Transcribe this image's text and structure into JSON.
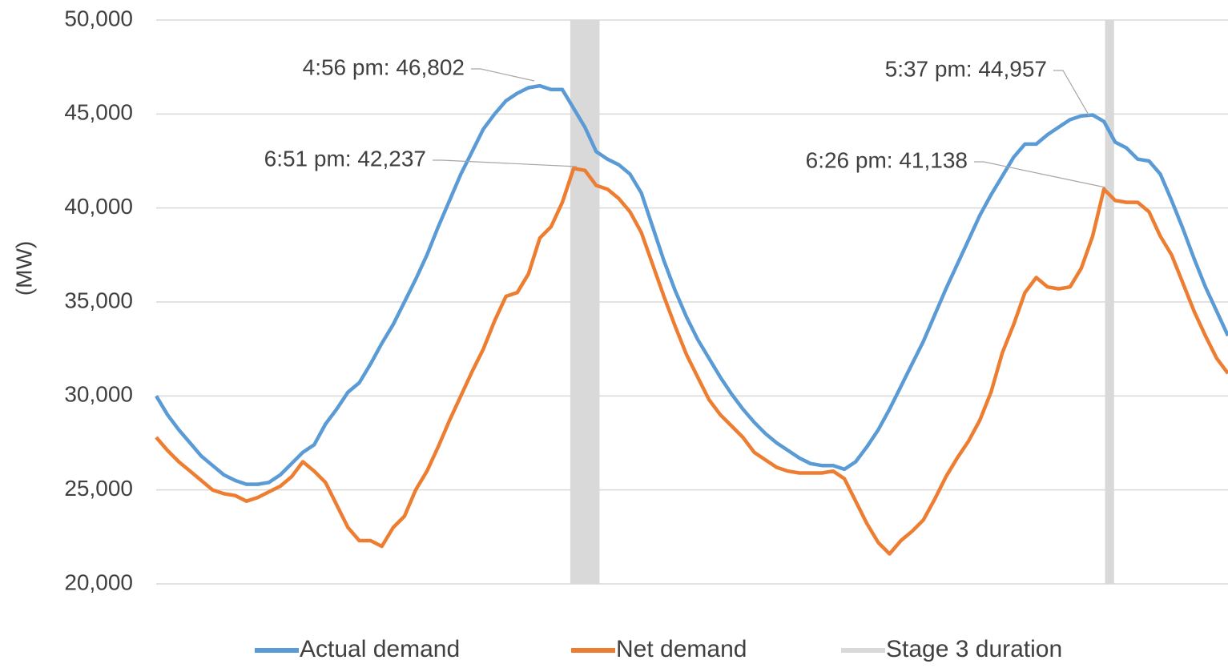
{
  "chart_data": {
    "type": "line",
    "y_label": "(MW)",
    "categories": [
      null,
      null,
      null,
      null,
      null,
      null,
      null,
      null,
      null,
      null,
      null,
      null,
      null,
      null,
      null,
      null,
      null,
      null,
      null,
      null,
      null,
      null,
      null,
      null,
      null,
      null,
      null,
      null,
      null,
      null,
      null,
      null,
      null,
      null,
      null,
      null,
      null,
      null,
      null,
      null,
      null,
      null,
      null,
      null,
      null,
      null,
      null,
      null,
      null,
      null,
      null,
      null,
      null,
      null,
      null,
      null,
      null,
      null,
      null,
      null,
      null,
      null,
      null,
      null,
      null,
      null,
      null,
      null,
      null,
      null,
      null,
      null,
      null,
      null,
      null,
      null,
      null,
      null,
      null,
      null,
      null,
      null,
      null,
      null,
      null,
      null,
      null,
      null,
      null,
      null,
      null,
      null,
      null,
      null,
      null,
      null
    ],
    "series": [
      {
        "name": "Actual demand",
        "color": "#5b9bd5",
        "values": [
          30000,
          29000,
          28200,
          27500,
          26800,
          26300,
          25800,
          25500,
          25300,
          25300,
          25400,
          25800,
          26400,
          27000,
          27400,
          28500,
          29300,
          30200,
          30700,
          31700,
          32800,
          33800,
          35000,
          36200,
          37500,
          39000,
          40400,
          41800,
          43000,
          44200,
          45000,
          45700,
          46100,
          46400,
          46500,
          46300,
          46300,
          45300,
          44300,
          43000,
          42600,
          42300,
          41800,
          40800,
          39000,
          37200,
          35600,
          34200,
          33000,
          32000,
          31000,
          30100,
          29300,
          28600,
          28000,
          27500,
          27100,
          26700,
          26400,
          26300,
          26300,
          26100,
          26500,
          27300,
          28200,
          29300,
          30500,
          31700,
          32900,
          34300,
          35700,
          37000,
          38300,
          39600,
          40700,
          41700,
          42700,
          43400,
          43400,
          43900,
          44300,
          44700,
          44900,
          44950,
          44600,
          43500,
          43200,
          42600,
          42500,
          41800,
          40400,
          38900,
          37300,
          35800,
          34500,
          33200
        ]
      },
      {
        "name": "Net demand",
        "color": "#ed7d31",
        "values": [
          27800,
          27100,
          26500,
          26000,
          25500,
          25000,
          24800,
          24700,
          24400,
          24600,
          24900,
          25200,
          25700,
          26500,
          26000,
          25400,
          24200,
          23000,
          22300,
          22300,
          22000,
          23000,
          23600,
          25000,
          26000,
          27300,
          28700,
          30000,
          31300,
          32500,
          34000,
          35300,
          35500,
          36500,
          38400,
          39000,
          40300,
          42100,
          42000,
          41200,
          41000,
          40500,
          39800,
          38700,
          37000,
          35300,
          33700,
          32200,
          31000,
          29800,
          29000,
          28400,
          27800,
          27000,
          26600,
          26200,
          26000,
          25900,
          25900,
          25900,
          26000,
          25600,
          24400,
          23200,
          22200,
          21600,
          22300,
          22800,
          23400,
          24500,
          25700,
          26700,
          27600,
          28700,
          30200,
          32300,
          33800,
          35500,
          36300,
          35800,
          35700,
          35800,
          36800,
          38500,
          41000,
          40400,
          40300,
          40300,
          39800,
          38500,
          37500,
          36000,
          34500,
          33200,
          32000,
          31200
        ]
      }
    ],
    "shaded": {
      "name": "Stage 3 duration",
      "color": "#d9d9d9",
      "spans": [
        [
          36.7,
          39.3
        ],
        [
          84.1,
          84.9
        ]
      ]
    },
    "annotations": [
      "4:56 pm: 46,802",
      "6:51 pm: 42,237",
      "5:37 pm: 44,957",
      "6:26 pm: 41,138"
    ],
    "ylim": [
      20000,
      50000
    ],
    "yticks": [
      {
        "value": 20000,
        "label": "20,000"
      },
      {
        "value": 25000,
        "label": "25,000"
      },
      {
        "value": 30000,
        "label": "30,000"
      },
      {
        "value": 35000,
        "label": "35,000"
      },
      {
        "value": 40000,
        "label": "40,000"
      },
      {
        "value": 45000,
        "label": "45,000"
      },
      {
        "value": 50000,
        "label": "50,000"
      }
    ],
    "grid": true
  }
}
